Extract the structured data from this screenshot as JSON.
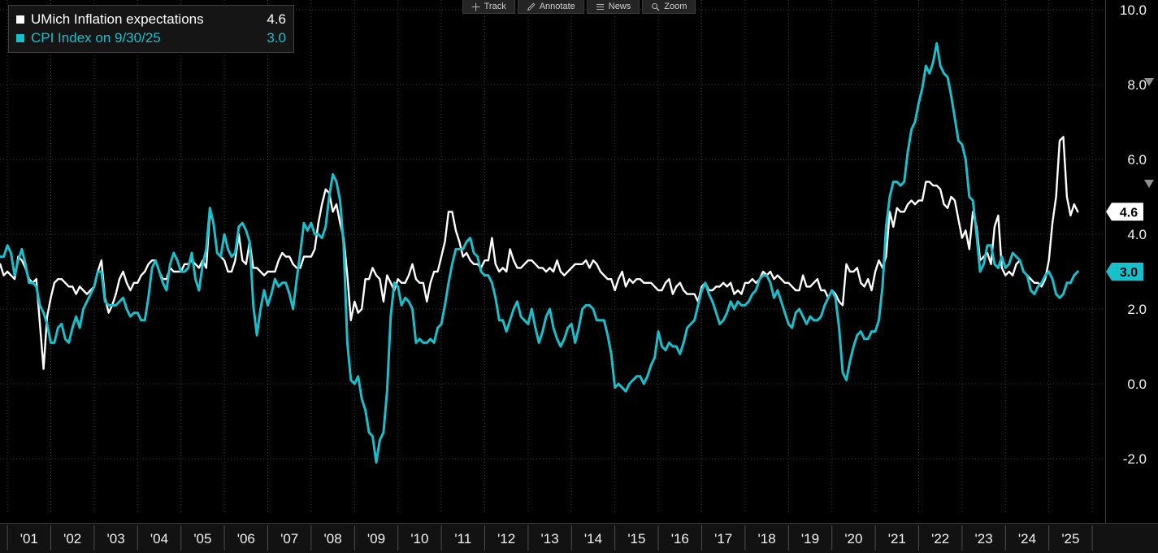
{
  "toolbar": {
    "items": [
      {
        "label": "Track",
        "icon": "track-icon"
      },
      {
        "label": "Annotate",
        "icon": "annotate-icon"
      },
      {
        "label": "News",
        "icon": "news-icon"
      },
      {
        "label": "Zoom",
        "icon": "zoom-icon"
      }
    ]
  },
  "legend": {
    "items": [
      {
        "label": "UMich Inflation expectations",
        "value": "4.6",
        "color": "#ffffff"
      },
      {
        "label": "CPI Index on 9/30/25",
        "value": "3.0",
        "color": "#17c0cb"
      }
    ]
  },
  "chart_data": {
    "type": "line",
    "title": "",
    "xlabel": "",
    "ylabel": "",
    "grid": "dotted",
    "background": "#000000",
    "legend_position": "top-left",
    "x_tick_labels": [
      "'01",
      "'02",
      "'03",
      "'04",
      "'05",
      "'06",
      "'07",
      "'08",
      "'09",
      "'10",
      "'11",
      "'12",
      "'13",
      "'14",
      "'15",
      "'16",
      "'17",
      "'18",
      "'19",
      "'20",
      "'21",
      "'22",
      "'23",
      "'24",
      "'25"
    ],
    "y_ticks": [
      10.0,
      8.0,
      6.0,
      4.0,
      2.0,
      0.0,
      -2.0
    ],
    "y_tick_labels": [
      "10.0",
      "8.0",
      "6.0",
      "4.0",
      "2.0",
      "0.0",
      "-2.0"
    ],
    "ylim": [
      -3.5,
      10.3
    ],
    "xlim_decimal_years": [
      2000.83,
      2026.3
    ],
    "last_value_badges": [
      {
        "label": "4.6",
        "value": 4.6,
        "bg": "#ffffff",
        "fg": "#000000"
      },
      {
        "label": "3.0",
        "value": 3.0,
        "bg": "#17c0cb",
        "fg": "#000000"
      }
    ],
    "series": [
      {
        "id": "umich",
        "name": "UMich Inflation expectations",
        "color": "#ffffff",
        "last_value": 4.6,
        "frequency": "monthly",
        "start_decimal_year": 2000.75,
        "values": [
          2.9,
          3.2,
          2.9,
          3.0,
          2.9,
          2.8,
          3.4,
          3.3,
          3.1,
          2.8,
          2.7,
          2.8,
          1.6,
          0.4,
          1.8,
          2.3,
          2.7,
          2.8,
          2.8,
          2.7,
          2.6,
          2.6,
          2.4,
          2.6,
          2.5,
          2.4,
          2.5,
          2.6,
          3.0,
          3.3,
          2.3,
          1.9,
          2.1,
          2.4,
          2.8,
          3.0,
          2.7,
          2.5,
          2.7,
          2.7,
          2.9,
          3.0,
          3.2,
          3.3,
          3.3,
          3.0,
          2.8,
          2.8,
          3.1,
          3.0,
          3.0,
          3.0,
          3.2,
          3.2,
          3.3,
          3.2,
          3.1,
          3.3,
          3.1,
          4.6,
          4.3,
          3.5,
          3.4,
          3.3,
          3.0,
          3.0,
          3.3,
          4.0,
          3.3,
          3.2,
          3.8,
          3.1,
          3.1,
          3.0,
          2.9,
          3.0,
          3.0,
          3.0,
          3.3,
          3.5,
          3.4,
          3.4,
          3.2,
          3.1,
          3.1,
          3.4,
          3.4,
          3.4,
          3.6,
          4.3,
          4.8,
          5.2,
          5.1,
          4.6,
          4.8,
          4.3,
          3.9,
          2.9,
          1.7,
          2.2,
          1.9,
          2.0,
          2.8,
          2.8,
          3.1,
          2.9,
          2.8,
          2.2,
          2.9,
          2.7,
          2.5,
          2.8,
          2.7,
          2.7,
          2.9,
          3.2,
          2.8,
          2.7,
          2.7,
          2.2,
          2.7,
          3.0,
          3.0,
          3.4,
          3.8,
          4.6,
          4.6,
          4.1,
          3.8,
          3.4,
          3.5,
          3.3,
          3.2,
          3.2,
          3.1,
          3.3,
          3.3,
          3.9,
          3.2,
          3.0,
          3.1,
          3.0,
          3.6,
          3.3,
          3.1,
          3.1,
          3.2,
          3.3,
          3.3,
          3.2,
          3.1,
          3.1,
          3.0,
          3.1,
          3.0,
          3.3,
          3.0,
          2.9,
          3.0,
          3.1,
          3.2,
          3.2,
          3.2,
          3.3,
          3.1,
          3.3,
          3.2,
          3.0,
          2.9,
          2.8,
          2.8,
          2.5,
          2.8,
          3.0,
          2.6,
          2.8,
          2.7,
          2.8,
          2.8,
          2.7,
          2.7,
          2.7,
          2.6,
          2.5,
          2.5,
          2.7,
          2.8,
          2.4,
          2.6,
          2.7,
          2.5,
          2.4,
          2.4,
          2.4,
          2.2,
          2.6,
          2.7,
          2.5,
          2.5,
          2.6,
          2.6,
          2.7,
          2.6,
          2.7,
          2.4,
          2.5,
          2.4,
          2.7,
          2.7,
          2.8,
          2.7,
          2.8,
          3.0,
          2.9,
          3.0,
          2.8,
          2.9,
          2.8,
          2.7,
          2.7,
          2.6,
          2.5,
          2.5,
          2.9,
          2.6,
          2.6,
          2.7,
          2.8,
          2.5,
          2.5,
          2.3,
          2.5,
          2.4,
          2.2,
          2.1,
          3.2,
          3.0,
          3.0,
          3.1,
          2.7,
          2.6,
          2.8,
          2.5,
          3.0,
          3.3,
          3.1,
          3.4,
          4.6,
          4.2,
          4.7,
          4.6,
          4.6,
          4.8,
          4.9,
          4.8,
          4.9,
          4.9,
          5.4,
          5.4,
          5.3,
          5.3,
          5.2,
          4.8,
          4.7,
          5.0,
          4.9,
          4.4,
          3.9,
          4.1,
          3.6,
          4.6,
          4.2,
          3.3,
          3.4,
          3.5,
          3.2,
          4.2,
          4.5,
          3.1,
          2.9,
          3.0,
          2.9,
          3.2,
          3.3,
          3.0,
          2.9,
          2.8,
          2.7,
          2.7,
          2.6,
          2.8,
          3.3,
          4.3,
          5.0,
          6.5,
          6.6,
          5.0,
          4.5,
          4.8,
          4.6
        ]
      },
      {
        "id": "cpi",
        "name": "CPI Index on 9/30/25",
        "color": "#17c0cb",
        "last_value": 3.0,
        "frequency": "monthly",
        "start_decimal_year": 2000.75,
        "values": [
          3.4,
          3.4,
          3.4,
          3.7,
          3.5,
          2.9,
          3.3,
          3.6,
          3.2,
          2.7,
          2.7,
          2.6,
          2.1,
          1.9,
          1.6,
          1.1,
          1.1,
          1.5,
          1.6,
          1.2,
          1.1,
          1.5,
          1.8,
          1.5,
          2.0,
          2.2,
          2.4,
          2.6,
          3.0,
          3.0,
          2.2,
          2.1,
          2.1,
          2.1,
          2.2,
          2.3,
          2.0,
          1.8,
          1.9,
          1.9,
          1.7,
          1.7,
          2.3,
          3.1,
          3.3,
          3.0,
          2.7,
          2.5,
          3.2,
          3.5,
          3.3,
          3.0,
          3.0,
          3.1,
          3.5,
          2.8,
          2.5,
          3.2,
          3.6,
          4.7,
          4.3,
          3.5,
          3.4,
          4.0,
          3.6,
          3.4,
          3.5,
          4.2,
          4.3,
          4.1,
          3.8,
          2.1,
          1.3,
          2.0,
          2.5,
          2.1,
          2.4,
          2.8,
          2.6,
          2.7,
          2.7,
          2.4,
          2.0,
          2.8,
          3.5,
          4.3,
          4.1,
          4.3,
          4.0,
          4.0,
          3.9,
          4.2,
          5.0,
          5.6,
          5.4,
          4.9,
          3.7,
          1.1,
          0.1,
          0.0,
          0.2,
          -0.4,
          -0.7,
          -1.3,
          -1.4,
          -2.1,
          -1.5,
          -1.3,
          -0.2,
          1.8,
          2.7,
          2.6,
          2.1,
          2.3,
          2.2,
          2.0,
          1.1,
          1.2,
          1.1,
          1.1,
          1.2,
          1.1,
          1.5,
          1.6,
          2.1,
          2.7,
          3.2,
          3.6,
          3.6,
          3.6,
          3.8,
          3.9,
          3.5,
          3.4,
          3.0,
          2.9,
          2.9,
          2.7,
          2.3,
          1.7,
          1.7,
          1.4,
          1.7,
          2.0,
          2.2,
          1.8,
          1.7,
          1.6,
          2.0,
          1.5,
          1.1,
          1.4,
          1.8,
          2.0,
          1.5,
          1.2,
          1.0,
          1.2,
          1.5,
          1.6,
          1.1,
          1.5,
          2.0,
          2.1,
          2.1,
          2.0,
          1.7,
          1.7,
          1.7,
          1.3,
          0.8,
          -0.1,
          0.0,
          -0.1,
          -0.2,
          0.0,
          0.1,
          0.2,
          0.2,
          0.0,
          0.2,
          0.5,
          0.7,
          1.4,
          1.0,
          0.9,
          1.1,
          1.0,
          1.0,
          0.8,
          1.1,
          1.5,
          1.6,
          1.7,
          2.1,
          2.5,
          2.7,
          2.4,
          2.2,
          1.9,
          1.6,
          1.7,
          1.9,
          2.2,
          2.0,
          2.2,
          2.1,
          2.1,
          2.2,
          2.4,
          2.5,
          2.8,
          2.9,
          2.9,
          2.7,
          2.3,
          2.5,
          2.2,
          1.9,
          1.6,
          1.5,
          1.9,
          2.0,
          1.8,
          1.6,
          1.8,
          1.7,
          1.7,
          1.8,
          2.1,
          2.3,
          2.5,
          2.3,
          1.5,
          0.3,
          0.1,
          0.6,
          1.0,
          1.3,
          1.4,
          1.2,
          1.2,
          1.4,
          1.4,
          1.7,
          2.6,
          4.2,
          5.0,
          5.4,
          5.4,
          5.3,
          5.4,
          6.2,
          6.8,
          7.0,
          7.5,
          7.9,
          8.5,
          8.3,
          8.6,
          9.1,
          8.5,
          8.3,
          8.2,
          7.7,
          7.1,
          6.5,
          6.4,
          6.0,
          5.0,
          4.9,
          4.0,
          3.0,
          3.2,
          3.7,
          3.7,
          3.2,
          3.1,
          3.4,
          3.1,
          3.2,
          3.5,
          3.4,
          3.3,
          3.0,
          2.9,
          2.5,
          2.4,
          2.6,
          2.7,
          2.9,
          3.0,
          2.8,
          2.4,
          2.3,
          2.4,
          2.7,
          2.7,
          2.9,
          3.0
        ]
      }
    ]
  }
}
